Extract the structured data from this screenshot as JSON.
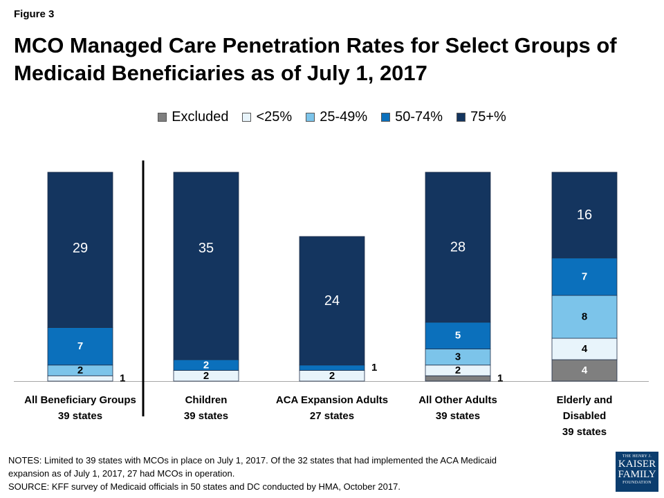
{
  "figure_label": "Figure 3",
  "title_line1": "MCO Managed Care Penetration Rates for Select Groups of",
  "title_line2": "Medicaid Beneficiaries as of July 1, 2017",
  "legend": [
    {
      "label": "Excluded",
      "color": "#7f7f7f"
    },
    {
      "label": "<25%",
      "color": "#e8f4fb"
    },
    {
      "label": "25-49%",
      "color": "#7cc4ea"
    },
    {
      "label": "50-74%",
      "color": "#0b70bc"
    },
    {
      "label": "75+%",
      "color": "#14355f"
    }
  ],
  "chart_data": {
    "type": "bar",
    "stacked": true,
    "categories": [
      {
        "name": "All Beneficiary Groups",
        "sub": "39 states"
      },
      {
        "name": "Children",
        "sub": "39 states"
      },
      {
        "name": "ACA Expansion Adults",
        "sub": "27 states"
      },
      {
        "name": "All Other Adults",
        "sub": "39 states"
      },
      {
        "name": "Elderly and Disabled",
        "sub": "39 states"
      }
    ],
    "series": [
      {
        "name": "Excluded",
        "color": "#7f7f7f",
        "values": [
          0,
          0,
          0,
          1,
          4
        ]
      },
      {
        "name": "<25%",
        "color": "#e8f4fb",
        "values": [
          1,
          2,
          2,
          2,
          4
        ]
      },
      {
        "name": "25-49%",
        "color": "#7cc4ea",
        "values": [
          2,
          0,
          0,
          3,
          8
        ]
      },
      {
        "name": "50-74%",
        "color": "#0b70bc",
        "values": [
          7,
          2,
          1,
          5,
          7
        ]
      },
      {
        "name": "75+%",
        "color": "#14355f",
        "values": [
          29,
          35,
          24,
          28,
          16
        ]
      }
    ],
    "ylim": [
      0,
      39
    ],
    "grid": false,
    "legend_position": "top-center"
  },
  "notes_line1": "NOTES: Limited to 39 states with MCOs in place on July 1, 2017. Of the 32 states that had implemented the ACA Medicaid",
  "notes_line2": "expansion as of July 1, 2017, 27 had MCOs in operation.",
  "source_line": "SOURCE: KFF survey of Medicaid officials in 50 states and DC conducted by HMA, October 2017.",
  "logo": {
    "line1": "THE HENRY J.",
    "line2": "KAISER",
    "line3": "FAMILY",
    "line4": "FOUNDATION"
  }
}
